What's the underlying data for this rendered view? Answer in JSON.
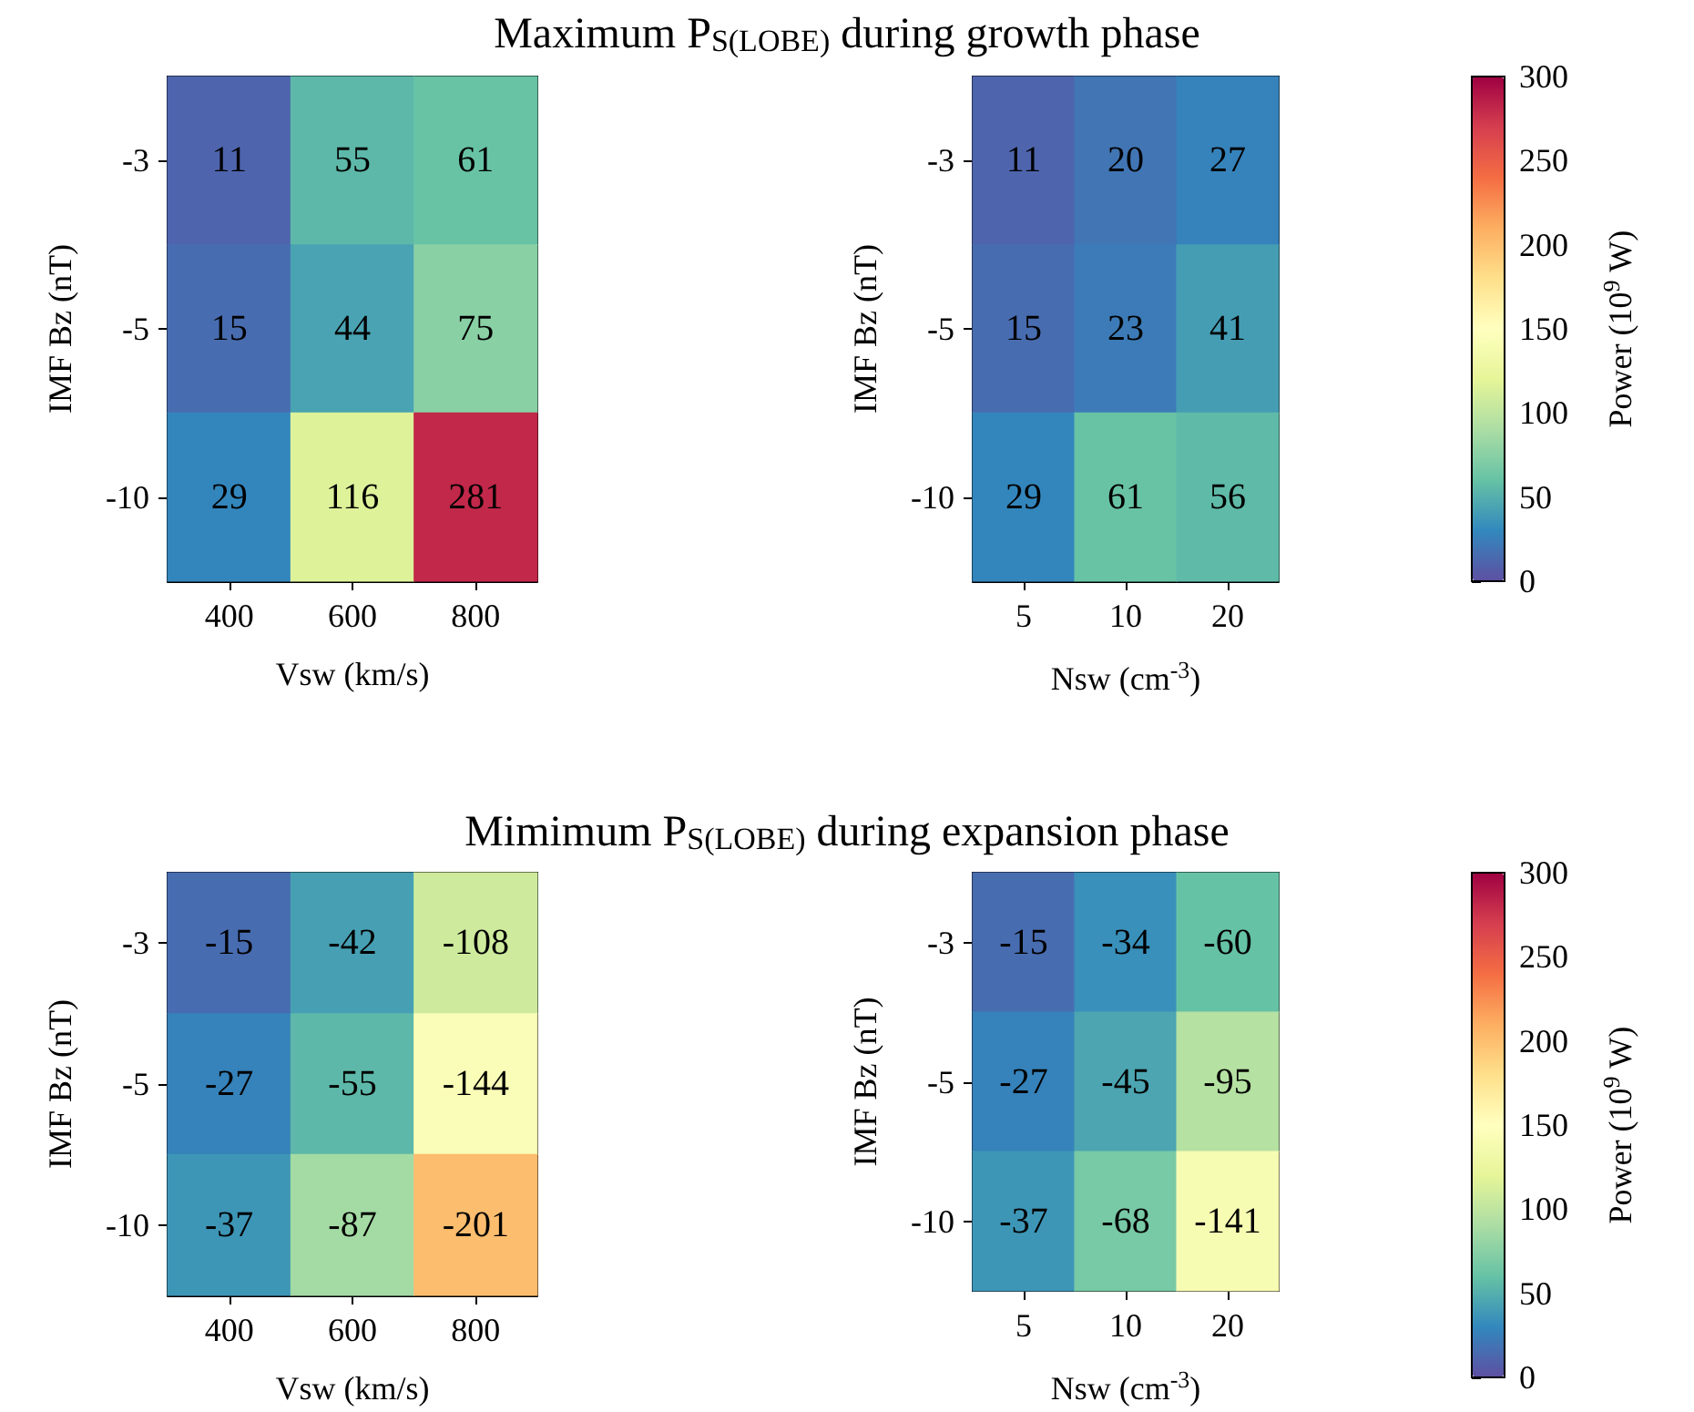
{
  "chart_data": [
    {
      "type": "heatmap",
      "title": "Maximum P$_{S(LOBE)}$ during growth phase",
      "xlabel": "Vsw (km/s)",
      "ylabel": "IMF Bz (nT)",
      "categories": [
        "400",
        "600",
        "800"
      ],
      "y_categories": [
        "-3",
        "-5",
        "-10"
      ],
      "data_labels": true,
      "cells": [
        [
          11,
          55,
          61
        ],
        [
          15,
          44,
          75
        ],
        [
          29,
          116,
          281
        ]
      ]
    },
    {
      "type": "heatmap",
      "xlabel": "Nsw (cm$^{-3}$)",
      "ylabel": "IMF Bz (nT)",
      "categories": [
        "5",
        "10",
        "20"
      ],
      "y_categories": [
        "-3",
        "-5",
        "-10"
      ],
      "data_labels": true,
      "clabel": "Power (10$^{9}$ W)",
      "clim": [
        0,
        300
      ],
      "cticks": [
        0,
        50,
        100,
        150,
        200,
        250,
        300
      ],
      "cells": [
        [
          11,
          20,
          27
        ],
        [
          15,
          23,
          41
        ],
        [
          29,
          61,
          56
        ]
      ]
    },
    {
      "type": "heatmap",
      "title": "Mimimum P$_{S(LOBE)}$ during expansion phase",
      "xlabel": "Vsw (km/s)",
      "ylabel": "IMF Bz (nT)",
      "categories": [
        "400",
        "600",
        "800"
      ],
      "y_categories": [
        "-3",
        "-5",
        "-10"
      ],
      "data_labels": true,
      "cells": [
        [
          -15,
          -42,
          -108
        ],
        [
          -27,
          -55,
          -144
        ],
        [
          -37,
          -87,
          -201
        ]
      ]
    },
    {
      "type": "heatmap",
      "xlabel": "Nsw (cm$^{-3}$)",
      "ylabel": "IMF Bz (nT)",
      "categories": [
        "5",
        "10",
        "20"
      ],
      "y_categories": [
        "-3",
        "-5",
        "-10"
      ],
      "data_labels": true,
      "clabel": "Power (10$^{9}$ W)",
      "clim": [
        0,
        -300
      ],
      "cticks": [
        {
          "value": 0,
          "label": "0"
        },
        {
          "value": -50,
          "label": "50"
        },
        {
          "value": -100,
          "label": "100"
        },
        {
          "value": -150,
          "label": "150"
        },
        {
          "value": -200,
          "label": "200"
        },
        {
          "value": -250,
          "label": "250"
        },
        {
          "value": -300,
          "label": "300"
        }
      ],
      "cells": [
        [
          -15,
          -34,
          -60
        ],
        [
          -27,
          -45,
          -95
        ],
        [
          -37,
          -68,
          -141
        ]
      ]
    }
  ]
}
